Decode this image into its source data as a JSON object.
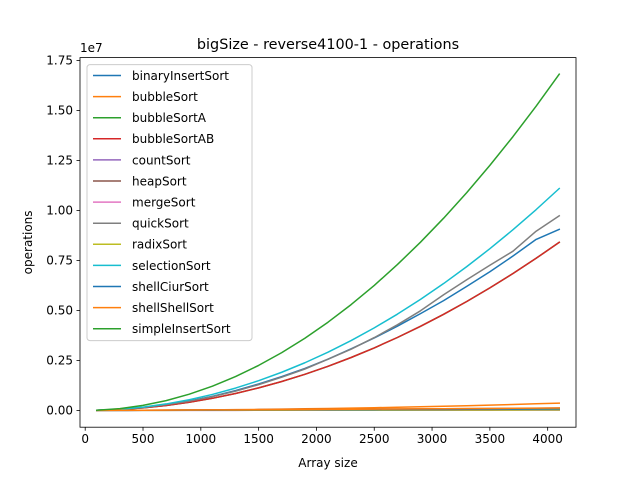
{
  "chart_data": {
    "type": "line",
    "title": "bigSize - reverse4100-1 - operations",
    "xlabel": "Array size",
    "ylabel": "operations",
    "y_multiplier_label": "1e7",
    "xlim": [
      -45,
      4245
    ],
    "ylim": [
      -840000,
      17640000
    ],
    "xticks": [
      0,
      500,
      1000,
      1500,
      2000,
      2500,
      3000,
      3500,
      4000
    ],
    "xtick_labels": [
      "0",
      "500",
      "1000",
      "1500",
      "2000",
      "2500",
      "3000",
      "3500",
      "4000"
    ],
    "yticks": [
      0,
      2500000,
      5000000,
      7500000,
      10000000,
      12500000,
      15000000,
      17500000
    ],
    "ytick_labels": [
      "0.00",
      "0.25",
      "0.50",
      "0.75",
      "1.00",
      "1.25",
      "1.50",
      "1.75"
    ],
    "grid": false,
    "legend_position": "upper-left",
    "x": [
      100,
      300,
      500,
      700,
      900,
      1100,
      1300,
      1500,
      1700,
      1900,
      2100,
      2300,
      2500,
      2700,
      2900,
      3100,
      3300,
      3500,
      3700,
      3900,
      4100
    ],
    "series": [
      {
        "name": "binaryInsertSort",
        "color": "#1f77b4",
        "values": [
          5000,
          50000,
          140000,
          300000,
          470000,
          700000,
          990000,
          1320000,
          1690000,
          2100000,
          2560000,
          3080000,
          3620000,
          4210000,
          4840000,
          5490000,
          6200000,
          6930000,
          7720000,
          8550000,
          9050000
        ]
      },
      {
        "name": "bubbleSort",
        "color": "#ff7f0e",
        "values": [
          300,
          2100,
          5700,
          11000,
          18000,
          27000,
          38000,
          50000,
          65000,
          80000,
          97000,
          115000,
          135000,
          158000,
          182000,
          207000,
          235000,
          262000,
          295000,
          330000,
          365000
        ]
      },
      {
        "name": "bubbleSortA",
        "color": "#2ca02c",
        "values": [
          5000,
          45000,
          125000,
          245000,
          405000,
          605000,
          845000,
          1125000,
          1445000,
          1805000,
          2205000,
          2645000,
          3125000,
          3645000,
          4205000,
          4805000,
          5445000,
          6125000,
          6845000,
          7605000,
          8405000
        ]
      },
      {
        "name": "bubbleSortAB",
        "color": "#d62728",
        "values": [
          5000,
          45000,
          125000,
          245000,
          405000,
          605000,
          845000,
          1125000,
          1445000,
          1805000,
          2205000,
          2645000,
          3125000,
          3645000,
          4205000,
          4805000,
          5445000,
          6125000,
          6845000,
          7605000,
          8405000
        ]
      },
      {
        "name": "countSort",
        "color": "#9467bd",
        "values": [
          300,
          900,
          1500,
          2100,
          2700,
          3300,
          3900,
          4500,
          5100,
          5700,
          6300,
          6900,
          7500,
          8100,
          8700,
          9300,
          9900,
          10500,
          11100,
          11700,
          12300
        ]
      },
      {
        "name": "heapSort",
        "color": "#8c564b",
        "values": [
          1300,
          5000,
          9500,
          14300,
          19500,
          24800,
          30300,
          35900,
          41700,
          47500,
          53500,
          59500,
          65700,
          71800,
          78100,
          84400,
          90800,
          97300,
          103800,
          110300,
          116900
        ]
      },
      {
        "name": "mergeSort",
        "color": "#e377c2",
        "values": [
          700,
          2500,
          4500,
          6600,
          8800,
          11100,
          13400,
          15800,
          18200,
          20600,
          23100,
          25600,
          28200,
          30700,
          33300,
          35900,
          38600,
          41200,
          43900,
          46500,
          49200
        ]
      },
      {
        "name": "quickSort",
        "color": "#7f7f7f",
        "values": [
          5500,
          52000,
          145000,
          290000,
          460000,
          690000,
          960000,
          1290000,
          1660000,
          2070000,
          2560000,
          3060000,
          3640000,
          4280000,
          4980000,
          5780000,
          6530000,
          7260000,
          7960000,
          8960000,
          9730000
        ]
      },
      {
        "name": "radixSort",
        "color": "#bcbd22",
        "values": [
          600,
          1800,
          3000,
          4200,
          5400,
          6600,
          7800,
          9000,
          10200,
          11400,
          12600,
          13800,
          15000,
          16200,
          17400,
          18600,
          19800,
          21000,
          22200,
          23400,
          24600
        ]
      },
      {
        "name": "selectionSort",
        "color": "#17becf",
        "values": [
          6600,
          59400,
          165000,
          323400,
          534600,
          798600,
          1115400,
          1485000,
          1907400,
          2382600,
          2910600,
          3491400,
          4125000,
          4811400,
          5550600,
          6342600,
          7187400,
          8085000,
          9035400,
          10038600,
          11094600
        ]
      },
      {
        "name": "shellCiurSort",
        "color": "#1f77b4",
        "values": [
          800,
          3200,
          6000,
          9000,
          12200,
          15600,
          19000,
          22500,
          26100,
          29800,
          33500,
          37300,
          41100,
          45000,
          48900,
          52800,
          56800,
          60800,
          64800,
          68900,
          73000
        ]
      },
      {
        "name": "shellShellSort",
        "color": "#ff7f0e",
        "values": [
          1000,
          4500,
          8700,
          13400,
          18300,
          23500,
          28900,
          34500,
          40300,
          46200,
          52300,
          58500,
          64800,
          71200,
          77700,
          84300,
          91000,
          97800,
          104700,
          111600,
          118600
        ]
      },
      {
        "name": "simpleInsertSort",
        "color": "#2ca02c",
        "values": [
          10000,
          90000,
          250000,
          490000,
          810000,
          1210000,
          1690000,
          2250000,
          2890000,
          3610000,
          4410000,
          5290000,
          6250000,
          7290000,
          8410000,
          9610000,
          10890000,
          12250000,
          13690000,
          15210000,
          16810000
        ]
      }
    ]
  }
}
